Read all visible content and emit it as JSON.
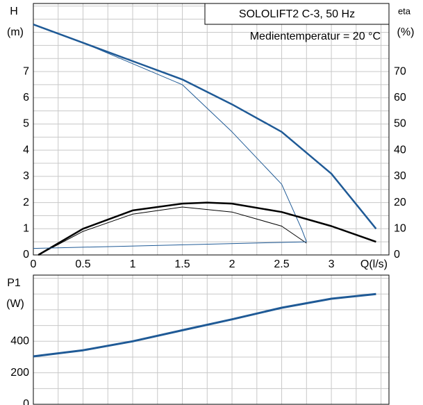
{
  "chart_data": [
    {
      "type": "line",
      "box_title": "SOLOLIFT2 C-3, 50 Hz",
      "subtitle": "Medientemperatur = 20 °C",
      "y_label": "H",
      "y_unit": "(m)",
      "y2_label": "eta",
      "y2_unit": "(%)",
      "x_label": "Q(l/s)",
      "xlim": [
        0,
        3.58
      ],
      "xticks": [
        0,
        0.5,
        1,
        1.5,
        2,
        2.5,
        3
      ],
      "ylim": [
        0,
        9.6
      ],
      "yticks": [
        0,
        1,
        2,
        3,
        4,
        5,
        6,
        7
      ],
      "y2lim": [
        0,
        96
      ],
      "y2ticks": [
        0,
        10,
        20,
        30,
        40,
        50,
        60,
        70
      ],
      "grid": true,
      "series": [
        {
          "color": "#1f5a96",
          "width": 2.5,
          "x": [
            0,
            0.5,
            1,
            1.5,
            2,
            2.5,
            3,
            3.45
          ],
          "values": [
            8.8,
            8.1,
            7.4,
            6.7,
            5.75,
            4.7,
            3.1,
            1.0
          ]
        },
        {
          "color": "#1f5a96",
          "width": 1,
          "x": [
            0,
            0.5,
            1,
            1.5,
            2,
            2.5,
            2.7,
            2.75
          ],
          "values": [
            8.8,
            8.1,
            7.3,
            6.5,
            4.7,
            2.7,
            1.0,
            0.5
          ]
        },
        {
          "color": "#000000",
          "width": 2.5,
          "axis": "y2",
          "x": [
            0.05,
            0.5,
            1,
            1.5,
            1.75,
            2,
            2.5,
            3,
            3.45
          ],
          "values": [
            0,
            10,
            17,
            19.6,
            20,
            19.6,
            16.4,
            11,
            5
          ]
        },
        {
          "color": "#000000",
          "width": 1,
          "axis": "y2",
          "x": [
            0.05,
            0.5,
            1,
            1.5,
            2,
            2.5,
            2.75
          ],
          "values": [
            0,
            9,
            15.6,
            18.3,
            16.4,
            11,
            4.5
          ]
        },
        {
          "color": "#1f5a96",
          "width": 1,
          "x": [
            0,
            2.75
          ],
          "values": [
            0.25,
            0.5
          ]
        }
      ]
    },
    {
      "type": "line",
      "y_label": "P1",
      "y_unit": "(W)",
      "xlim": [
        0,
        3.58
      ],
      "ylim": [
        0,
        820
      ],
      "yticks": [
        0,
        200,
        400
      ],
      "grid": true,
      "series": [
        {
          "color": "#1f5a96",
          "width": 3,
          "x": [
            0,
            0.5,
            1,
            1.5,
            2,
            2.5,
            3,
            3.45
          ],
          "values": [
            304,
            343,
            400,
            470,
            539,
            613,
            670,
            700
          ]
        }
      ]
    }
  ]
}
